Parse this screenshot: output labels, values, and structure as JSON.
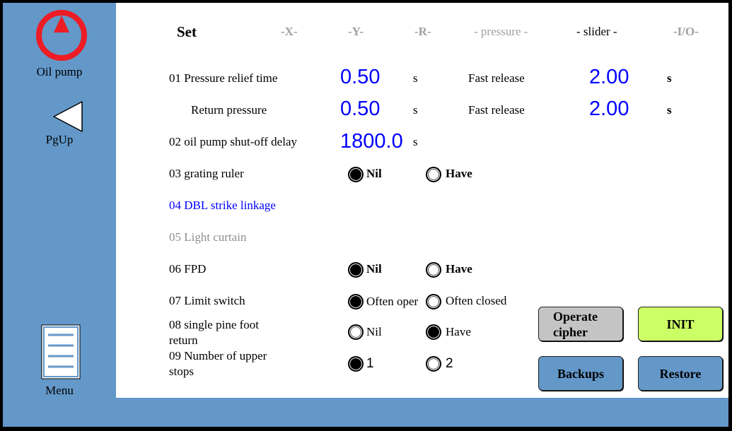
{
  "sidebar": {
    "oil_pump": "Oil pump",
    "pgup": "PgUp",
    "menu": "Menu"
  },
  "colors": {
    "sidebar": "#6398c9",
    "value": "#0000ff",
    "oil_pump_icon": "#ee1c24",
    "init": "#ccff66",
    "cipher": "#c4c4c4"
  },
  "header": {
    "set": "Set",
    "x": "-X-",
    "y": "-Y-",
    "r": "-R-",
    "pressure": "- pressure -",
    "slider": "- slider -",
    "io": "-I/O-"
  },
  "rows": {
    "r01": {
      "label": "01 Pressure relief time",
      "value": "0.50",
      "unit": "s",
      "fast_label": "Fast release",
      "fast_value": "2.00",
      "fast_unit": "s"
    },
    "return": {
      "label": "Return pressure",
      "value": "0.50",
      "unit": "s",
      "fast_label": "Fast release",
      "fast_value": "2.00",
      "fast_unit": "s"
    },
    "r02": {
      "label": "02 oil pump shut-off delay",
      "value": "1800.0",
      "unit": "s"
    },
    "r03": {
      "label": "03 grating ruler",
      "opt1": "Nil",
      "opt2": "Have",
      "selected": "Nil"
    },
    "r04": {
      "label": "04 DBL strike linkage"
    },
    "r05": {
      "label": "05 Light curtain"
    },
    "r06": {
      "label": "06 FPD",
      "opt1": "Nil",
      "opt2": "Have",
      "selected": "Nil"
    },
    "r07": {
      "label": "07 Limit switch",
      "opt1": "Often oper",
      "opt2": "Often closed",
      "selected": "Often oper"
    },
    "r08": {
      "label1": "08 single pine foot",
      "label2": "return",
      "opt1": "Nil",
      "opt2": "Have",
      "selected": "Have"
    },
    "r09": {
      "label1": "09 Number of upper",
      "label2": "stops",
      "opt1": "1",
      "opt2": "2",
      "selected": "1"
    }
  },
  "buttons": {
    "cipher1": "Operate",
    "cipher2": "cipher",
    "init": "INIT",
    "backups": "Backups",
    "restore": "Restore"
  }
}
